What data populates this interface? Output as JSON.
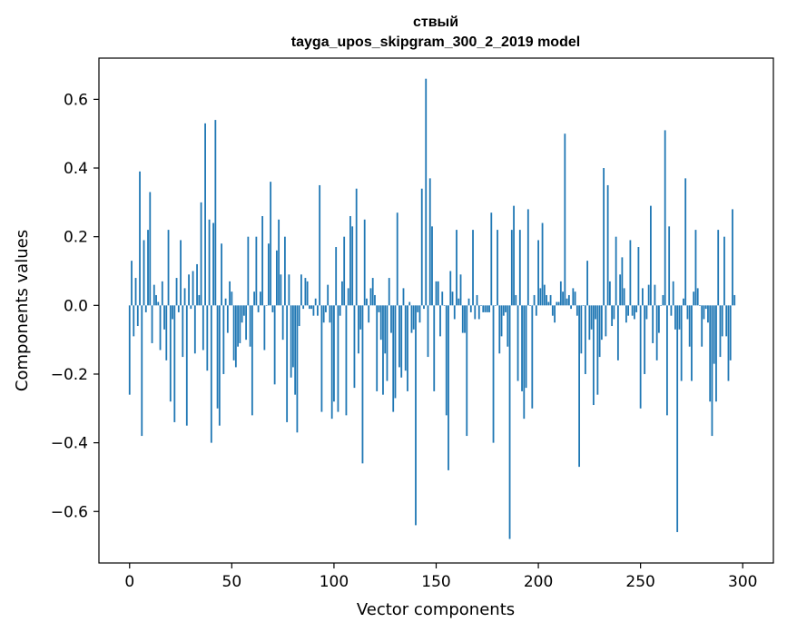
{
  "chart_data": {
    "type": "bar",
    "title_line1": "ствый",
    "title_line2": "tayga_upos_skipgram_300_2_2019 model",
    "xlabel": "Vector components",
    "ylabel": "Components values",
    "xlim": [
      -15,
      315
    ],
    "ylim": [
      -0.75,
      0.72
    ],
    "xticks": [
      {
        "value": 0,
        "label": "0"
      },
      {
        "value": 50,
        "label": "50"
      },
      {
        "value": 100,
        "label": "100"
      },
      {
        "value": 150,
        "label": "150"
      },
      {
        "value": 200,
        "label": "200"
      },
      {
        "value": 250,
        "label": "250"
      },
      {
        "value": 300,
        "label": "300"
      }
    ],
    "yticks": [
      {
        "value": 0.6,
        "label": "0.6"
      },
      {
        "value": 0.4,
        "label": "0.4"
      },
      {
        "value": 0.2,
        "label": "0.2"
      },
      {
        "value": 0.0,
        "label": "0.0"
      },
      {
        "value": -0.2,
        "label": "−0.2"
      },
      {
        "value": -0.4,
        "label": "−0.4"
      },
      {
        "value": -0.6,
        "label": "−0.6"
      }
    ],
    "bar_color": "#1f77b4",
    "values": [
      -0.26,
      0.13,
      -0.09,
      0.08,
      -0.06,
      0.39,
      -0.38,
      0.19,
      -0.02,
      0.22,
      0.33,
      -0.11,
      0.06,
      0.03,
      0.01,
      -0.13,
      0.07,
      -0.07,
      -0.16,
      0.22,
      -0.28,
      -0.04,
      -0.34,
      0.08,
      -0.02,
      0.19,
      -0.15,
      0.05,
      -0.35,
      0.09,
      -0.01,
      0.1,
      -0.14,
      0.12,
      0.03,
      0.3,
      -0.13,
      0.53,
      -0.19,
      0.25,
      -0.4,
      0.24,
      0.54,
      -0.3,
      -0.35,
      0.18,
      -0.2,
      0.02,
      -0.08,
      0.07,
      0.04,
      -0.16,
      -0.18,
      -0.12,
      -0.11,
      -0.05,
      -0.03,
      -0.1,
      0.2,
      -0.12,
      -0.32,
      0.04,
      0.2,
      -0.02,
      0.04,
      0.26,
      -0.13,
      0.0,
      0.18,
      0.36,
      -0.02,
      -0.23,
      0.16,
      0.25,
      0.09,
      -0.1,
      0.2,
      -0.34,
      0.09,
      -0.21,
      -0.18,
      -0.26,
      -0.37,
      -0.06,
      0.09,
      -0.01,
      0.08,
      0.07,
      -0.01,
      -0.01,
      -0.03,
      0.02,
      -0.03,
      0.35,
      -0.31,
      -0.05,
      -0.02,
      0.06,
      -0.05,
      -0.33,
      -0.28,
      0.17,
      -0.31,
      -0.03,
      0.07,
      0.2,
      -0.32,
      0.05,
      0.26,
      0.23,
      -0.24,
      0.34,
      -0.14,
      -0.07,
      -0.46,
      0.25,
      0.02,
      -0.05,
      0.05,
      0.08,
      0.03,
      -0.25,
      -0.02,
      -0.1,
      -0.26,
      -0.14,
      -0.22,
      0.08,
      -0.08,
      -0.31,
      -0.27,
      0.27,
      -0.18,
      -0.21,
      0.05,
      -0.19,
      -0.25,
      0.01,
      -0.08,
      -0.07,
      -0.64,
      -0.02,
      -0.05,
      0.34,
      -0.01,
      0.66,
      -0.15,
      0.37,
      0.23,
      -0.25,
      0.07,
      0.07,
      -0.09,
      0.04,
      0.0,
      -0.32,
      -0.48,
      0.1,
      0.04,
      -0.04,
      0.22,
      0.02,
      0.09,
      -0.08,
      -0.08,
      -0.38,
      0.02,
      -0.02,
      0.22,
      -0.04,
      0.03,
      -0.04,
      0.0,
      -0.02,
      -0.02,
      -0.02,
      -0.02,
      0.27,
      -0.4,
      0.0,
      0.22,
      -0.14,
      -0.09,
      -0.03,
      -0.02,
      -0.12,
      -0.68,
      0.22,
      0.29,
      0.03,
      -0.22,
      0.22,
      -0.25,
      -0.33,
      -0.24,
      0.28,
      0.0,
      -0.3,
      0.03,
      -0.03,
      0.19,
      0.05,
      0.24,
      0.06,
      0.03,
      0.01,
      0.03,
      -0.03,
      -0.05,
      0.01,
      0.01,
      0.07,
      0.04,
      0.5,
      0.02,
      0.03,
      -0.01,
      0.05,
      0.04,
      -0.03,
      -0.47,
      -0.14,
      0.0,
      -0.2,
      0.13,
      -0.1,
      -0.07,
      -0.29,
      -0.04,
      -0.26,
      -0.15,
      -0.1,
      0.4,
      -0.09,
      0.35,
      0.07,
      -0.06,
      -0.04,
      0.2,
      -0.16,
      0.09,
      0.14,
      0.05,
      -0.05,
      -0.03,
      0.19,
      -0.03,
      -0.04,
      -0.02,
      0.17,
      -0.3,
      0.05,
      -0.2,
      -0.04,
      0.06,
      0.29,
      -0.11,
      0.06,
      -0.16,
      -0.08,
      0.0,
      0.03,
      0.51,
      -0.32,
      0.23,
      -0.03,
      0.07,
      -0.07,
      -0.66,
      -0.07,
      -0.22,
      0.02,
      0.37,
      -0.04,
      -0.12,
      -0.22,
      0.04,
      0.22,
      0.05,
      0.0,
      -0.12,
      -0.04,
      -0.01,
      -0.05,
      -0.28,
      -0.38,
      -0.17,
      -0.28,
      0.22,
      -0.15,
      -0.09,
      0.2,
      -0.09,
      -0.22,
      -0.16,
      0.28,
      0.03
    ]
  }
}
